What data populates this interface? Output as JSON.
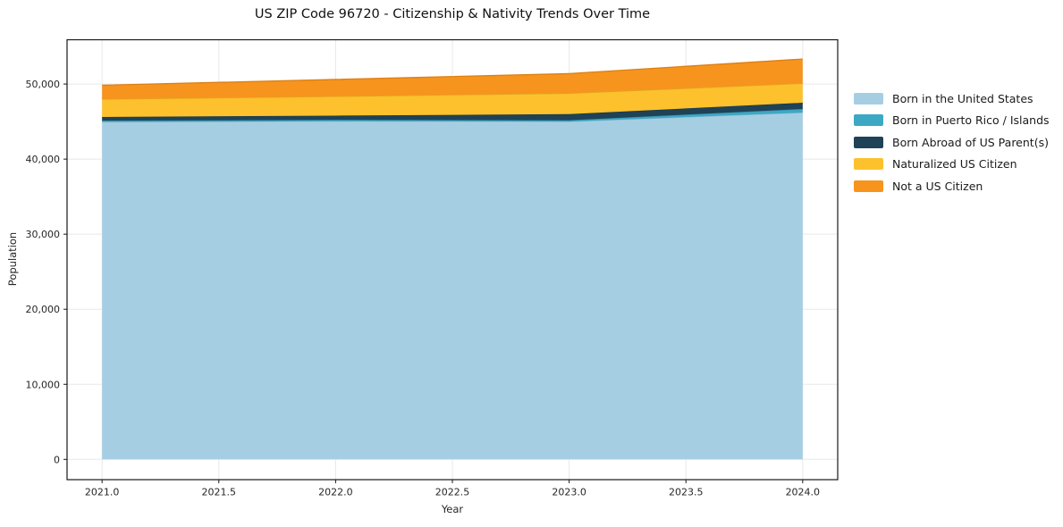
{
  "title": "US ZIP Code 96720 - Citizenship & Nativity Trends Over Time",
  "chart_data": {
    "type": "area",
    "stacked": true,
    "title": "US ZIP Code 96720 - Citizenship & Nativity Trends Over Time",
    "xlabel": "Year",
    "ylabel": "Population",
    "x": [
      2021,
      2022,
      2023,
      2024
    ],
    "series": [
      {
        "name": "Born in the United States",
        "color": "#a6cee3",
        "edge": "#8fb9d0",
        "values": [
          44950,
          45050,
          45000,
          46200
        ]
      },
      {
        "name": "Born in Puerto Rico / Islands",
        "color": "#3da8c4",
        "edge": "#3493ad",
        "values": [
          180,
          180,
          180,
          480
        ]
      },
      {
        "name": "Born Abroad of US Parent(s)",
        "color": "#1f4257",
        "edge": "#1a3849",
        "values": [
          480,
          560,
          810,
          830
        ]
      },
      {
        "name": "Naturalized US Citizen",
        "color": "#fcc12d",
        "edge": "#e0a91f",
        "values": [
          2380,
          2570,
          2780,
          2580
        ]
      },
      {
        "name": "Not a US Citizen",
        "color": "#f6941e",
        "edge": "#dd7f14",
        "values": [
          1850,
          2250,
          2620,
          3240
        ]
      }
    ],
    "x_ticks": [
      2021.0,
      2021.5,
      2022.0,
      2022.5,
      2023.0,
      2023.5,
      2024.0
    ],
    "x_tick_labels": [
      "2021.0",
      "2021.5",
      "2022.0",
      "2022.5",
      "2023.0",
      "2023.5",
      "2024.0"
    ],
    "y_ticks": [
      0,
      10000,
      20000,
      30000,
      40000,
      50000
    ],
    "y_tick_labels": [
      "0",
      "10,000",
      "20,000",
      "30,000",
      "40,000",
      "50,000"
    ],
    "xlim": [
      2020.85,
      2024.15
    ],
    "ylim": [
      -2700,
      55900
    ],
    "grid": true,
    "grid_color": "#e8e8e8",
    "spine_color": "#15191c",
    "tick_label_color": "#262626",
    "legend_position": "right"
  }
}
